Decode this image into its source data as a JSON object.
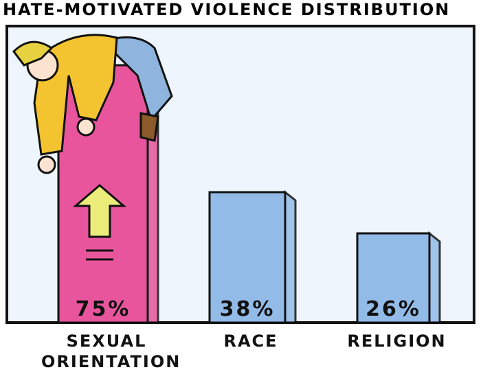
{
  "chart_data": {
    "type": "bar",
    "title": "HATE-MOTIVATED VIOLENCE DISTRIBUTION",
    "categories": [
      "SEXUAL ORIENTATION",
      "RACE",
      "RELIGION"
    ],
    "values": [
      75,
      38,
      26
    ],
    "value_labels": [
      "75%",
      "38%",
      "26%"
    ],
    "colors": [
      "#e8559c",
      "#93bbe8",
      "#93bbe8"
    ]
  }
}
